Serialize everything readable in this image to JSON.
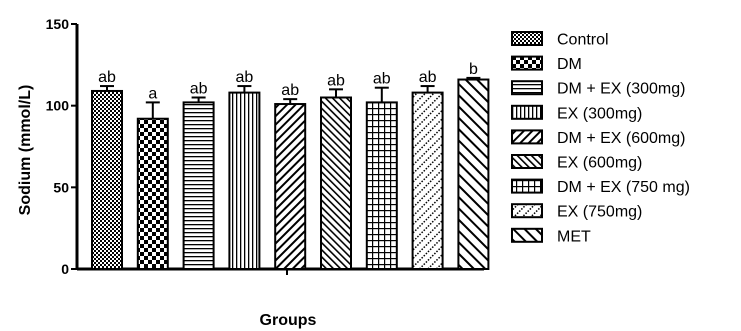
{
  "chart_data": {
    "type": "bar",
    "title": "",
    "xlabel": "Groups",
    "ylabel": "Sodium (mmol/L)",
    "ylim": [
      0,
      150
    ],
    "yticks": [
      "0",
      "50",
      "100",
      "150"
    ],
    "grid": false,
    "legend_position": "right",
    "categories": [
      "Control",
      "DM",
      "DM + EX (300mg)",
      "EX (300mg)",
      "DM + EX (600mg)",
      "EX (600mg)",
      "DM + EX (750 mg)",
      "EX (750mg)",
      "MET"
    ],
    "values": [
      109,
      92,
      102,
      108,
      101,
      105,
      102,
      108,
      116
    ],
    "errors": [
      3,
      10,
      3,
      4,
      3,
      5,
      9,
      4,
      1
    ],
    "significance_labels": [
      "ab",
      "a",
      "ab",
      "ab",
      "ab",
      "ab",
      "ab",
      "ab",
      "b"
    ],
    "patterns": [
      "dense-checker",
      "checker",
      "horizontal-lines",
      "vertical-lines",
      "diagonal-up",
      "diagonal-down",
      "grid",
      "dotted-diagonal",
      "diagonal-down-wide"
    ]
  }
}
